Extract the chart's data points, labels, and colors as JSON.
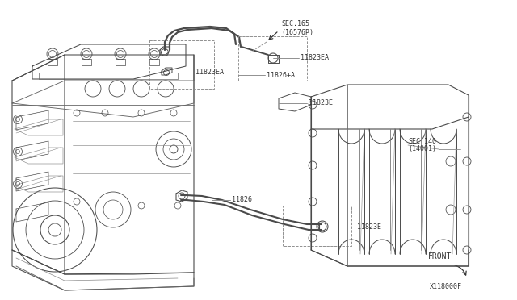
{
  "bg": "#ffffff",
  "lc": "#4a4a4a",
  "dc": "#888888",
  "tc": "#333333",
  "sec165_1": "SEC.165",
  "sec165_2": "(16576P)",
  "sec140_1": "SEC.140",
  "sec140_2": "(14001)",
  "lbl_11823EA_1": "11823EA",
  "lbl_11826A": "11826+A",
  "lbl_11823EA_2": "11823EA",
  "lbl_11823E_1": "11823E",
  "lbl_11826": "11826",
  "lbl_11823E_2": "11823E",
  "lbl_front": "FRONT",
  "lbl_id": "X118000F"
}
